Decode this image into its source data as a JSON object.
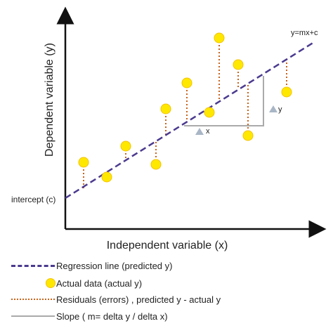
{
  "diagram": {
    "equation_label": "y=mx+c",
    "y_axis_label": "Dependent variable (y)",
    "x_axis_label": "Independent variable (x)",
    "intercept_label": "intercept (c)",
    "delta_x_label": "x",
    "delta_y_label": "y"
  },
  "legend": {
    "regression": "Regression line (predicted y)",
    "actual": "Actual data (actual y)",
    "residuals": "Residuals (errors)  , predicted y  - actual y",
    "slope": "Slope ( m= delta y / delta x)"
  },
  "colors": {
    "regression_line": "#4b3a8f",
    "data_point": "#ffe800",
    "residual": "#c8641c",
    "slope": "#aaaaaa",
    "triangle_marker": "#a9b6c6"
  }
}
